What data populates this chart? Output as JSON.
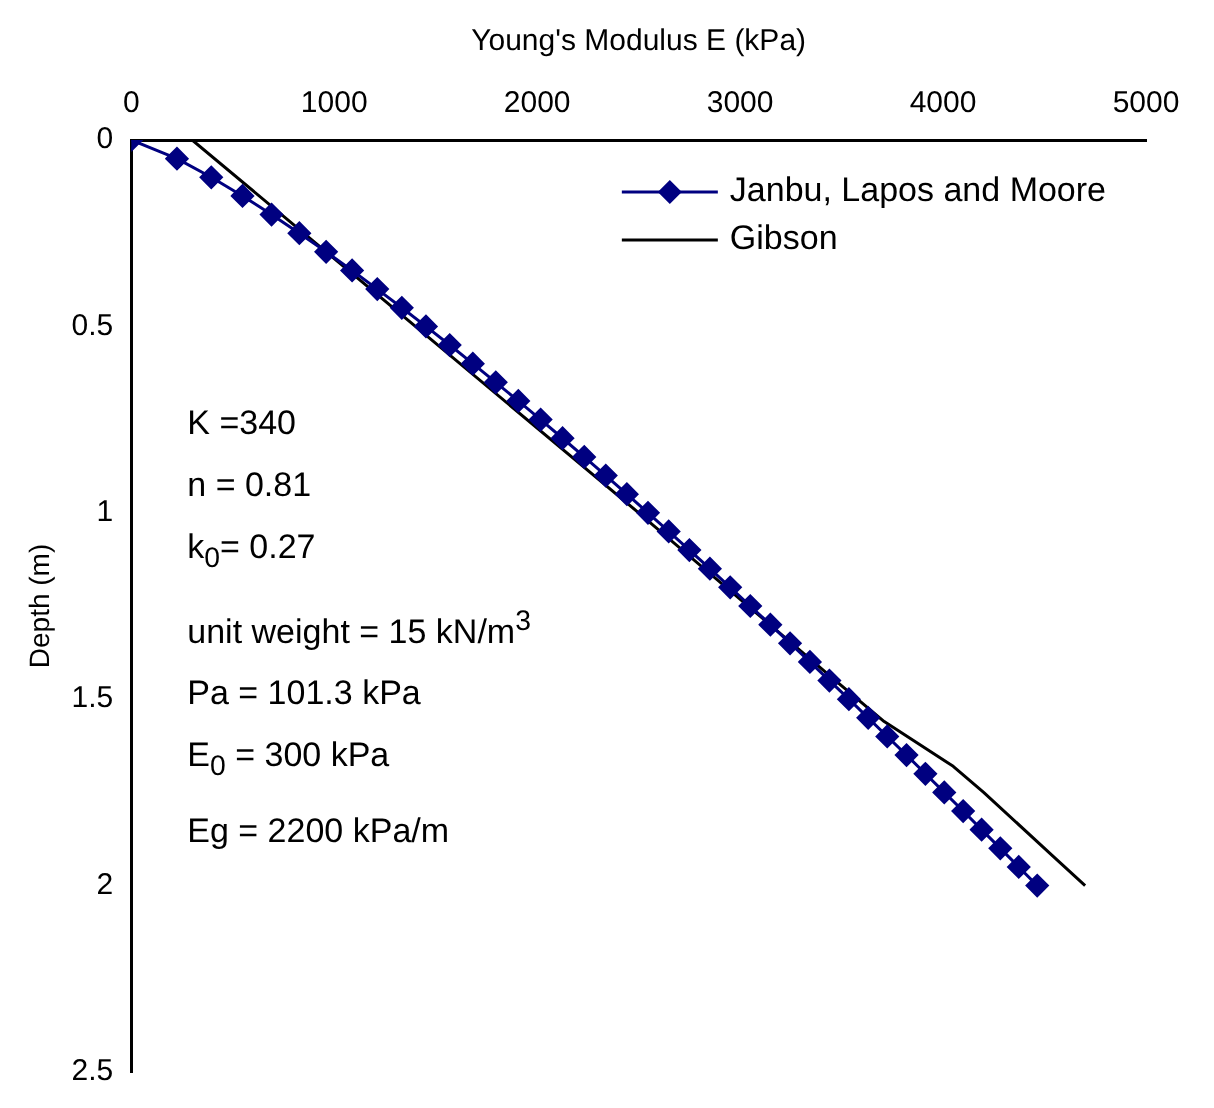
{
  "chart_data": {
    "type": "line",
    "xlabel": "Young's Modulus E (kPa)",
    "ylabel": "Depth (m)",
    "xlim": [
      0,
      5000
    ],
    "xticks": [
      0,
      1000,
      2000,
      3000,
      4000,
      5000
    ],
    "ylim": [
      2.5,
      0
    ],
    "yticks": [
      0,
      0.5,
      1,
      1.5,
      2,
      2.5
    ],
    "grid": false,
    "legend": "top right",
    "line_style": "solid",
    "series": [
      {
        "name": "Janbu, Lapos and Moore",
        "color": "#000080",
        "marker": "diamond",
        "x": [
          0,
          225,
          394,
          548,
          691,
          828,
          960,
          1088,
          1212,
          1333,
          1452,
          1569,
          1683,
          1796,
          1907,
          2017,
          2125,
          2232,
          2338,
          2442,
          2546,
          2648,
          2750,
          2851,
          2951,
          3050,
          3149,
          3246,
          3344,
          3440,
          3536,
          3631,
          3725,
          3820,
          3913,
          4006,
          4099,
          4190,
          4282,
          4373,
          4464
        ],
        "values": [
          0,
          0.05,
          0.1,
          0.15,
          0.2,
          0.25,
          0.3,
          0.35,
          0.4,
          0.45,
          0.5,
          0.55,
          0.6,
          0.65,
          0.7,
          0.75,
          0.8,
          0.85,
          0.9,
          0.95,
          1,
          1.05,
          1.1,
          1.15,
          1.2,
          1.25,
          1.3,
          1.35,
          1.4,
          1.45,
          1.5,
          1.55,
          1.6,
          1.65,
          1.7,
          1.75,
          1.8,
          1.85,
          1.9,
          1.95,
          2
        ]
      },
      {
        "name": "Gibson",
        "color": "#000000",
        "marker": "none",
        "x": [
          300,
          1400,
          2500,
          3470,
          3710,
          4050,
          4200,
          4540,
          4700
        ],
        "values": [
          0,
          0.5,
          1,
          1.45,
          1.56,
          1.68,
          1.75,
          1.92,
          2
        ]
      }
    ],
    "annotations": [
      "K =340",
      "n = 0.81",
      "k$_{0}$= 0.27",
      "unit weight = 15 kN/m$^{3}$",
      "Pa = 101.3 kPa",
      "E$_{0}$ = 300 kPa",
      "Eg = 2200 kPa/m"
    ]
  }
}
